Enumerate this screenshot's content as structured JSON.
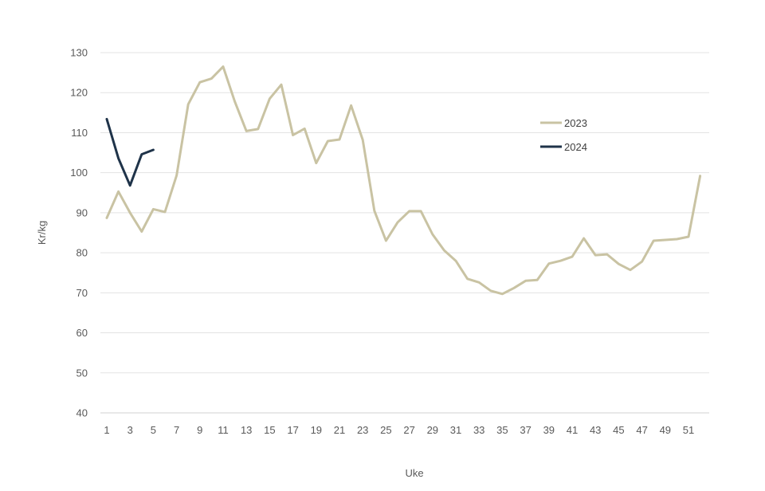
{
  "chart_data": {
    "type": "line",
    "xlabel": "Uke",
    "ylabel": "Kr/kg",
    "xlim": [
      1,
      52
    ],
    "ylim": [
      40,
      130
    ],
    "y_ticks": [
      40,
      50,
      60,
      70,
      80,
      90,
      100,
      110,
      120,
      130
    ],
    "x_tick_labels": [
      "1",
      "3",
      "5",
      "7",
      "9",
      "11",
      "13",
      "15",
      "17",
      "19",
      "21",
      "23",
      "25",
      "27",
      "29",
      "31",
      "33",
      "35",
      "37",
      "39",
      "41",
      "43",
      "45",
      "47",
      "49",
      "51"
    ],
    "grid": "horizontal",
    "legend_position": "right",
    "series": [
      {
        "name": "2023",
        "color": "#c9c3a3",
        "x": [
          1,
          2,
          3,
          4,
          5,
          6,
          7,
          8,
          9,
          10,
          11,
          12,
          13,
          14,
          15,
          16,
          17,
          18,
          19,
          20,
          21,
          22,
          23,
          24,
          25,
          26,
          27,
          28,
          29,
          30,
          31,
          32,
          33,
          34,
          35,
          36,
          37,
          38,
          39,
          40,
          41,
          42,
          43,
          44,
          45,
          46,
          47,
          48,
          49,
          50,
          51,
          52
        ],
        "values": [
          88.7,
          95.3,
          90.0,
          85.3,
          90.9,
          90.2,
          99.3,
          117.1,
          122.6,
          123.5,
          126.5,
          117.8,
          110.4,
          110.9,
          118.5,
          122.0,
          109.4,
          111.0,
          102.4,
          107.9,
          108.3,
          116.8,
          108.2,
          90.5,
          83.0,
          87.6,
          90.4,
          90.4,
          84.6,
          80.6,
          78.0,
          73.5,
          72.6,
          70.5,
          69.7,
          71.2,
          73.0,
          73.2,
          77.3,
          78.0,
          79.0,
          83.6,
          79.4,
          79.6,
          77.2,
          75.7,
          77.8,
          83.0,
          83.2,
          83.4,
          84.0,
          99.2
        ]
      },
      {
        "name": "2024",
        "color": "#1f3349",
        "x": [
          1,
          2,
          3,
          4,
          5
        ],
        "values": [
          113.4,
          103.6,
          96.8,
          104.6,
          105.7
        ]
      }
    ]
  }
}
